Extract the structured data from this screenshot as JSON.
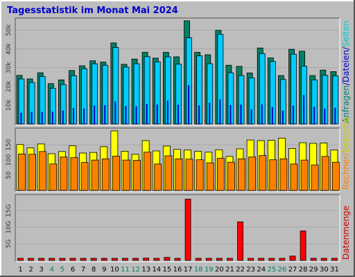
{
  "chart_data": {
    "type": "bar",
    "title": "Tagesstatistik im Monat Mai 2024",
    "categories": [
      "1",
      "2",
      "3",
      "4",
      "5",
      "6",
      "7",
      "8",
      "9",
      "10",
      "11",
      "12",
      "13",
      "14",
      "15",
      "16",
      "17",
      "18",
      "19",
      "20",
      "21",
      "22",
      "23",
      "24",
      "25",
      "26",
      "27",
      "28",
      "29",
      "30",
      "31"
    ],
    "weekend_days": [
      4,
      5,
      11,
      12,
      18,
      19,
      25,
      26
    ],
    "panels": [
      {
        "id": "top",
        "ylim": [
          0,
          55000
        ],
        "ticks": [
          {
            "value": 10000,
            "label": "10k"
          },
          {
            "value": 20000,
            "label": "20k"
          },
          {
            "value": 30000,
            "label": "30k"
          },
          {
            "value": 40000,
            "label": "40k"
          },
          {
            "value": 50000,
            "label": "50k"
          }
        ],
        "side_labels": [
          {
            "text": "Anfragen",
            "color": "#008066"
          },
          {
            "text": "/",
            "color": "#0000cc"
          },
          {
            "text": "Dateien",
            "color": "#0000cc"
          },
          {
            "text": "/",
            "color": "#0000cc"
          },
          {
            "text": "Seiten",
            "color": "#00cccc"
          }
        ],
        "series": [
          {
            "name": "Anfragen",
            "color": "#008066",
            "values": [
              25900,
              24000,
              27300,
              21500,
              23500,
              28500,
              31000,
              33700,
              33000,
              43200,
              31800,
              34600,
              38200,
              35100,
              38200,
              35800,
              55000,
              38200,
              36900,
              49900,
              31300,
              30700,
              27200,
              40500,
              35200,
              25800,
              39800,
              38800,
              25800,
              28700,
              27900
            ]
          },
          {
            "name": "Dateien",
            "color": "#00ccff",
            "values": [
              24000,
              22100,
              25300,
              19000,
              21000,
              25700,
              29400,
              32100,
              31300,
              40800,
              30300,
              32100,
              35900,
              33100,
              35800,
              31900,
              45900,
              36300,
              32100,
              47800,
              27300,
              25800,
              24600,
              37500,
              33300,
              23700,
              37200,
              30800,
              23500,
              25900,
              25600
            ]
          },
          {
            "name": "Seiten",
            "color": "#0000cc",
            "values": [
              6000,
              6300,
              6300,
              6500,
              7200,
              8600,
              8300,
              9800,
              10000,
              12000,
              9600,
              9400,
              10700,
              10400,
              12500,
              10300,
              20600,
              9900,
              11200,
              13100,
              10100,
              10400,
              7800,
              10500,
              9000,
              7100,
              9800,
              15400,
              9200,
              8200,
              8700
            ]
          }
        ]
      },
      {
        "id": "middle",
        "ylim": [
          0,
          196
        ],
        "ticks": [
          {
            "value": 50,
            "label": "50"
          },
          {
            "value": 100,
            "label": "100"
          },
          {
            "value": 150,
            "label": "150"
          }
        ],
        "side_labels": [
          {
            "text": "Rechner",
            "color": "#ff8000"
          },
          {
            "text": "/",
            "color": "#ff8000"
          },
          {
            "text": "Besuche",
            "color": "#cccc00"
          }
        ],
        "series": [
          {
            "name": "Besuche",
            "color": "#ffff00",
            "values": [
              151,
              140,
              153,
              121,
              128,
              147,
              123,
              125,
              144,
              196,
              129,
              119,
              164,
              130,
              146,
              135,
              133,
              129,
              126,
              134,
              112,
              137,
              166,
              164,
              165,
              172,
              138,
              157,
              155,
              156,
              133
            ]
          },
          {
            "name": "Rechner",
            "color": "#ff8000",
            "values": [
              120,
              119,
              128,
              87,
              110,
              108,
              92,
              100,
              104,
              113,
              100,
              99,
              126,
              87,
              114,
              104,
              103,
              101,
              91,
              106,
              93,
              104,
              110,
              115,
              101,
              104,
              87,
              100,
              84,
              112,
              93
            ]
          }
        ]
      },
      {
        "id": "bottom",
        "ylim": [
          0,
          19000
        ],
        "ticks": [
          {
            "value": 5000,
            "label": "5G"
          },
          {
            "value": 10000,
            "label": "10G"
          },
          {
            "value": 15000,
            "label": "15G"
          }
        ],
        "side_labels": [
          {
            "text": "Datenmenge",
            "color": "#cc0000"
          }
        ],
        "series": [
          {
            "name": "Datenmenge",
            "color": "#ff0000",
            "values": [
              200,
              200,
              200,
              200,
              300,
              400,
              200,
              300,
              400,
              500,
              300,
              300,
              700,
              200,
              900,
              150,
              18500,
              300,
              500,
              400,
              600,
              11600,
              300,
              500,
              600,
              300,
              1300,
              8900,
              500,
              300,
              300
            ]
          }
        ]
      }
    ]
  }
}
